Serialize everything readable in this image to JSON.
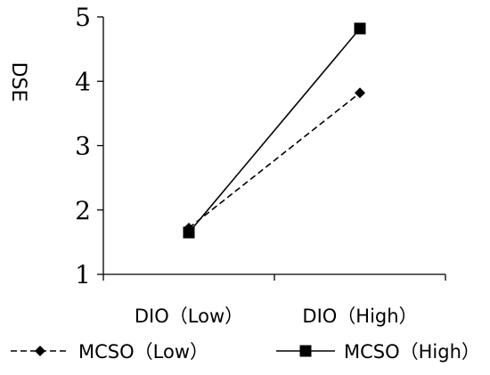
{
  "chart_data": {
    "type": "line",
    "title": "",
    "xlabel": "",
    "ylabel": "DSE",
    "ylim": [
      1,
      5
    ],
    "yticks": [
      "1",
      "2",
      "3",
      "4",
      "5"
    ],
    "categories": [
      "DIO（Low）",
      "DIO（High）"
    ],
    "grid": false,
    "legend_position": "bottom",
    "series": [
      {
        "name": "MCSO（Low）",
        "values": [
          1.72,
          3.82
        ],
        "line_style": "dashed",
        "marker": "diamond",
        "color": "#000000"
      },
      {
        "name": "MCSO（High）",
        "values": [
          1.65,
          4.82
        ],
        "line_style": "solid",
        "marker": "square",
        "color": "#000000"
      }
    ]
  }
}
